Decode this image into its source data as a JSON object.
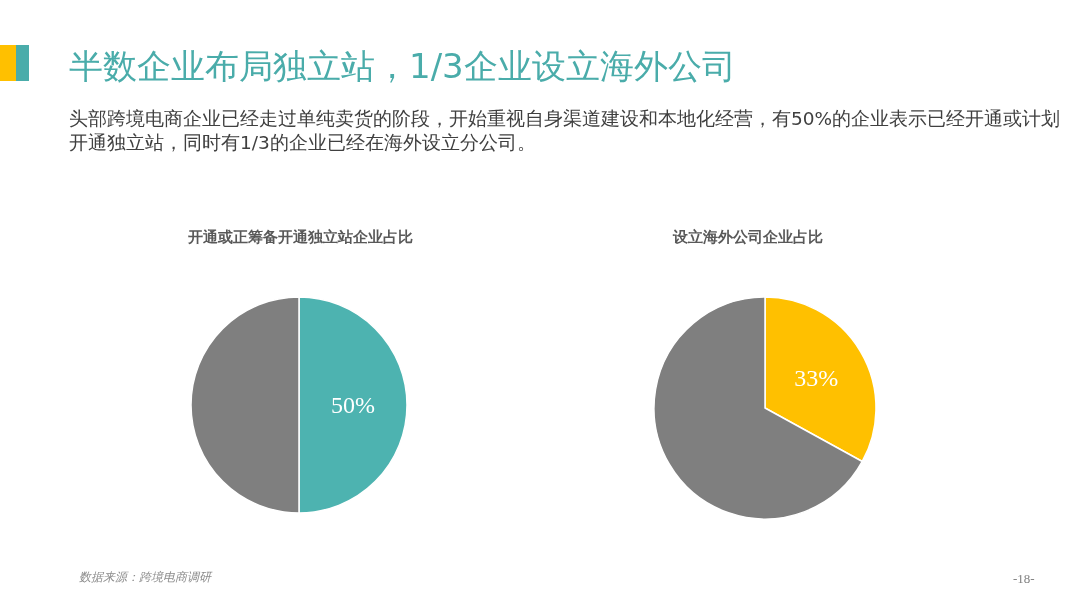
{
  "chart_data": [
    {
      "type": "other",
      "title": "半数企业布局独立站，1/3企业设立海外公司",
      "subtitle": "头部跨境电商企业已经走过单纯卖货的阶段，开始重视自身渠道建设和本地化经营，有50%的企业表示已经开通或计划开通独立站，同时有1/3的企业已经在海外设立分公司。",
      "annotations": [
        "数据来源：跨境电商调研",
        "-18-"
      ]
    },
    {
      "type": "pie",
      "title": "开通或正筹备开通独立站企业占比",
      "categories": [
        null,
        null
      ],
      "values": [
        50,
        50
      ],
      "colors": [
        "#4db3b0",
        "#7f7f7f"
      ],
      "value_labels": [
        "50%",
        null
      ]
    },
    {
      "type": "pie",
      "title": "设立海外公司企业占比",
      "categories": [
        null,
        null
      ],
      "values": [
        33,
        67
      ],
      "colors": [
        "#ffc000",
        "#7f7f7f"
      ],
      "value_labels": [
        "33%",
        null
      ]
    }
  ]
}
